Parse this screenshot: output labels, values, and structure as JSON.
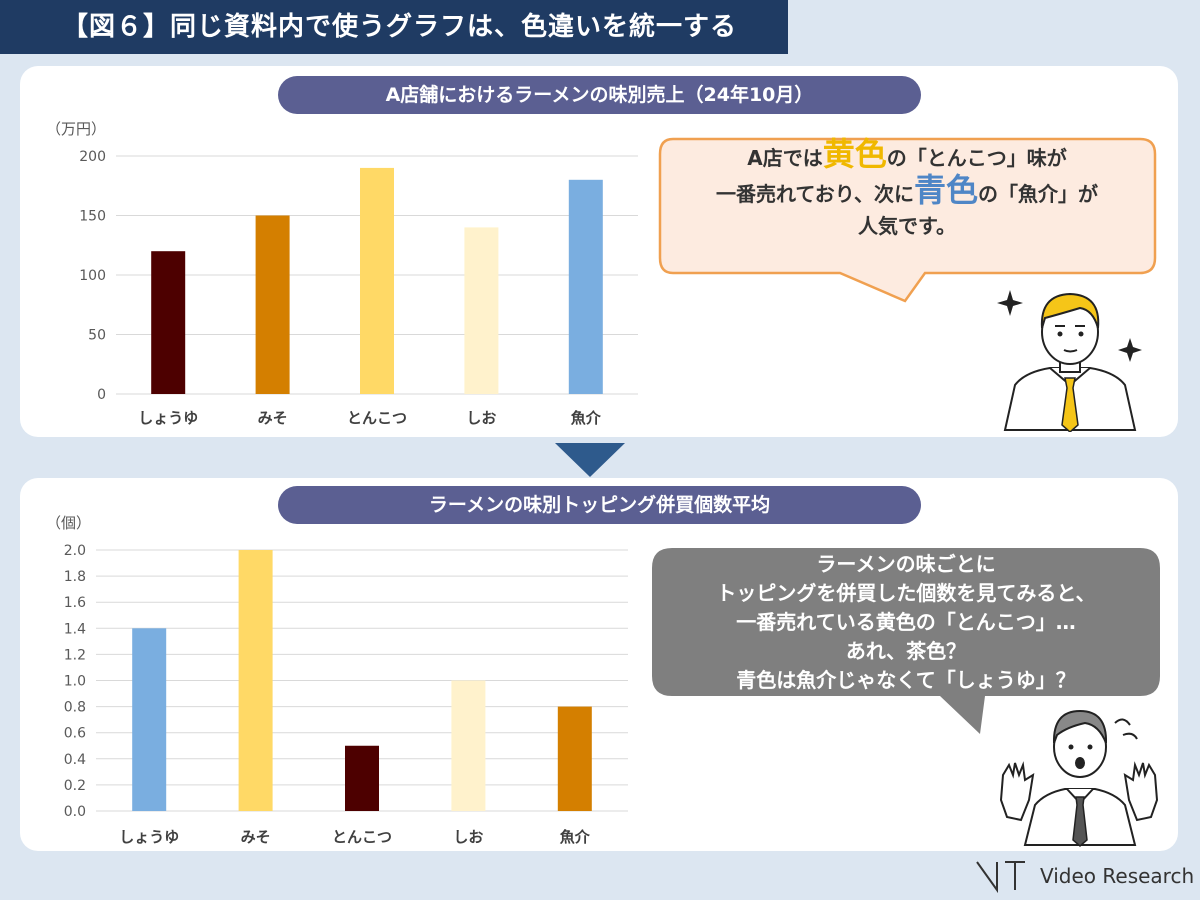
{
  "header": {
    "title": "【図６】同じ資料内で使うグラフは、色違いを統一する"
  },
  "chart_data": [
    {
      "type": "bar",
      "title": "A店舗におけるラーメンの味別売上（24年10月）",
      "ylabel": "（万円）",
      "categories": [
        "しょうゆ",
        "みそ",
        "とんこつ",
        "しお",
        "魚介"
      ],
      "values": [
        120,
        150,
        190,
        140,
        180
      ],
      "colors": [
        "#4d0000",
        "#d47f00",
        "#ffd966",
        "#fff2cc",
        "#7aaee0"
      ],
      "ylim": [
        0,
        200
      ],
      "yticks": [
        "0",
        "50",
        "100",
        "150",
        "200"
      ],
      "ytick_values": [
        0,
        50,
        100,
        150,
        200
      ],
      "grid": true
    },
    {
      "type": "bar",
      "title": "ラーメンの味別トッピング併買個数平均",
      "ylabel": "（個）",
      "categories": [
        "しょうゆ",
        "みそ",
        "とんこつ",
        "しお",
        "魚介"
      ],
      "values": [
        1.4,
        2.0,
        0.5,
        1.0,
        0.8
      ],
      "colors": [
        "#7aaee0",
        "#ffd966",
        "#4d0000",
        "#fff2cc",
        "#d47f00"
      ],
      "ylim": [
        0,
        2.0
      ],
      "yticks": [
        "0.0",
        "0.2",
        "0.4",
        "0.6",
        "0.8",
        "1.0",
        "1.2",
        "1.4",
        "1.6",
        "1.8",
        "2.0"
      ],
      "ytick_values": [
        0,
        0.2,
        0.4,
        0.6,
        0.8,
        1.0,
        1.2,
        1.4,
        1.6,
        1.8,
        2.0
      ],
      "grid": true
    }
  ],
  "bubble1": {
    "line1_a": "A店では",
    "line1_hl": "黄色",
    "line1_b": "の「とんこつ」味が",
    "line2_a": "一番売れており、次に",
    "line2_hl": "青色",
    "line2_b": "の「魚介」が",
    "line3": "人気です。"
  },
  "bubble2": {
    "lines": [
      "ラーメンの味ごとに",
      "トッピングを併買した個数を見てみると、",
      "一番売れている黄色の「とんこつ」…",
      "あれ、茶色？",
      "青色は魚介じゃなくて「しょうゆ」？"
    ]
  },
  "logo": {
    "text": "Video Research"
  }
}
